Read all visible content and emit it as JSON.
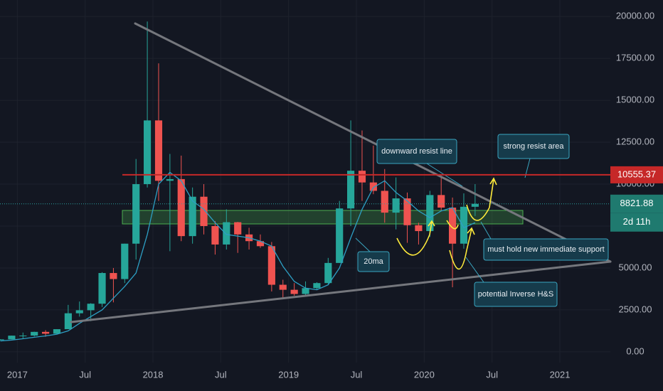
{
  "chart_data": {
    "type": "candlestick",
    "x": [
      "2016-11",
      "2016-12",
      "2017-01",
      "2017-02",
      "2017-03",
      "2017-04",
      "2017-05",
      "2017-06",
      "2017-07",
      "2017-08",
      "2017-09",
      "2017-10",
      "2017-11",
      "2017-12",
      "2018-01",
      "2018-02",
      "2018-03",
      "2018-04",
      "2018-05",
      "2018-06",
      "2018-07",
      "2018-08",
      "2018-09",
      "2018-10",
      "2018-11",
      "2018-12",
      "2019-01",
      "2019-02",
      "2019-03",
      "2019-04",
      "2019-05",
      "2019-06",
      "2019-07",
      "2019-08",
      "2019-09",
      "2019-10",
      "2019-11",
      "2019-12",
      "2020-01",
      "2020-02",
      "2020-03",
      "2020-04",
      "2020-05"
    ],
    "open": [
      700,
      745,
      965,
      970,
      1190,
      1080,
      1350,
      2300,
      2480,
      2870,
      4700,
      4340,
      6450,
      10000,
      13800,
      10200,
      10300,
      6900,
      9250,
      7500,
      6400,
      7730,
      7000,
      6600,
      6300,
      4000,
      3700,
      3450,
      3800,
      4100,
      5300,
      8550,
      10800,
      10100,
      9600,
      8300,
      9150,
      7550,
      7200,
      9350,
      8600,
      6450,
      8650
    ],
    "high": [
      750,
      970,
      1150,
      1200,
      1290,
      1350,
      2800,
      3000,
      2900,
      4750,
      5000,
      6450,
      11500,
      19700,
      17200,
      11800,
      11700,
      9800,
      10000,
      7800,
      8500,
      7750,
      7400,
      7000,
      6550,
      4300,
      4100,
      4200,
      4150,
      5600,
      9000,
      13800,
      13200,
      12300,
      10900,
      10400,
      9500,
      7700,
      9600,
      10500,
      9200,
      9450,
      10000
    ],
    "low": [
      680,
      740,
      760,
      920,
      900,
      1070,
      1350,
      2100,
      1830,
      2670,
      2950,
      4100,
      5500,
      9800,
      9000,
      6000,
      6600,
      6450,
      7000,
      5800,
      6100,
      5900,
      6100,
      6200,
      3600,
      3150,
      3350,
      3400,
      3700,
      4050,
      5300,
      7500,
      9000,
      9400,
      7700,
      7300,
      6500,
      6400,
      6850,
      8450,
      3850,
      6150,
      8100
    ],
    "close": [
      745,
      965,
      970,
      1190,
      1080,
      1350,
      2300,
      2480,
      2870,
      4700,
      4340,
      6450,
      10000,
      13800,
      10200,
      10300,
      6900,
      9250,
      7500,
      6400,
      7730,
      7000,
      6600,
      6300,
      4000,
      3700,
      3450,
      3800,
      4100,
      5300,
      8550,
      10800,
      10100,
      9600,
      8300,
      9150,
      7550,
      7200,
      9350,
      8600,
      6450,
      8650,
      8821.88
    ],
    "ma": {
      "name": "20ma",
      "color": "#2d9fc4",
      "values": [
        650,
        700,
        780,
        870,
        950,
        1050,
        1250,
        1700,
        2100,
        2500,
        3200,
        3900,
        4700,
        7000,
        10000,
        10700,
        10200,
        9000,
        8500,
        7700,
        7000,
        6900,
        6800,
        6600,
        6300,
        5100,
        4200,
        3800,
        3700,
        4000,
        5000,
        6800,
        8500,
        9800,
        10200,
        9500,
        9000,
        8400,
        8000,
        8400,
        8600,
        7400,
        7700
      ]
    },
    "up_color": "#26a69a",
    "down_color": "#ef5350",
    "xlim": [
      "2016-11-15",
      "2021-05-15"
    ],
    "xticks": [
      {
        "value": "2017-01",
        "label": "2017"
      },
      {
        "value": "2017-07",
        "label": "Jul"
      },
      {
        "value": "2018-01",
        "label": "2018"
      },
      {
        "value": "2018-07",
        "label": "Jul"
      },
      {
        "value": "2019-01",
        "label": "2019"
      },
      {
        "value": "2019-07",
        "label": "Jul"
      },
      {
        "value": "2020-01",
        "label": "2020"
      },
      {
        "value": "2020-07",
        "label": "Jul"
      },
      {
        "value": "2021-01",
        "label": "2021"
      }
    ],
    "ylim": [
      -640,
      20980
    ],
    "yticks": [
      {
        "value": 0,
        "label": "0.00"
      },
      {
        "value": 2500,
        "label": "2500.00"
      },
      {
        "value": 5000,
        "label": "5000.00"
      },
      {
        "value": 7500,
        "label": "7500.00"
      },
      {
        "value": 10000,
        "label": "10000.00"
      },
      {
        "value": 12500,
        "label": "12500.00"
      },
      {
        "value": 15000,
        "label": "15000.00"
      },
      {
        "value": 17500,
        "label": "17500.00"
      },
      {
        "value": 20000,
        "label": "20000.00"
      }
    ],
    "grid": true,
    "resistance": {
      "value": 10555.37,
      "label": "10555.37",
      "color": "#c62828"
    },
    "last_price": {
      "value": 8821.88,
      "label": "8821.88",
      "color": "#1f7a6f"
    },
    "countdown": "2d 11h",
    "annotations": [
      "downward resist line",
      "strong resist area",
      "20ma",
      "must hold new immediate support",
      "potential Inverse H&S"
    ]
  }
}
